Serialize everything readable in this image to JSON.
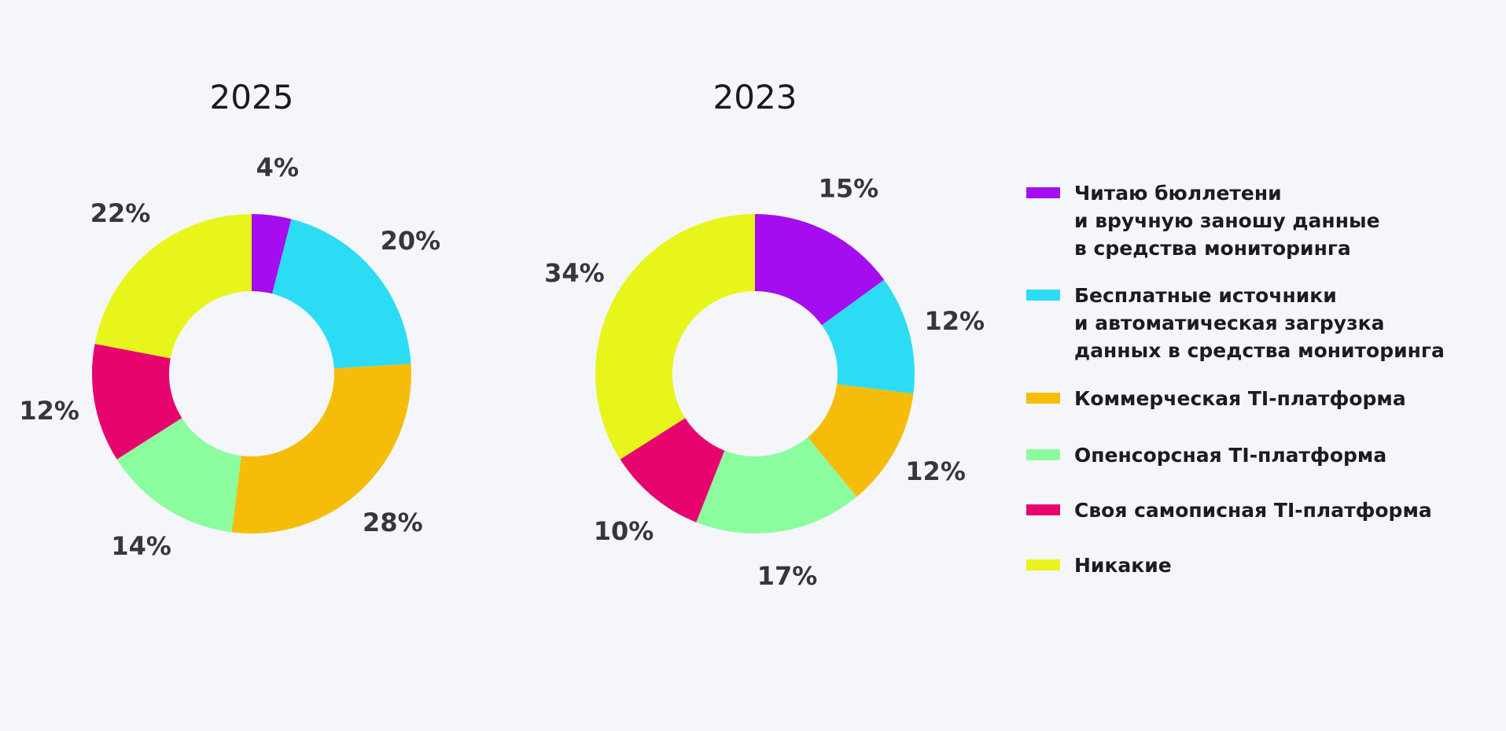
{
  "legend": {
    "items": [
      {
        "name": "Читаю бюллетени\nи вручную заношу данные\nв средства мониторинга",
        "color": "#a50cf0"
      },
      {
        "name": "Бесплатные источники\nи автоматическая загрузка\nданных в средства мониторинга",
        "color": "#2cdcf5"
      },
      {
        "name": "Коммерческая TI-платформа",
        "color": "#f5bd0a"
      },
      {
        "name": "Опенсорсная TI-платформа",
        "color": "#8cfd9f"
      },
      {
        "name": "Своя самописная TI-платформа",
        "color": "#e8046e"
      },
      {
        "name": "Никакие",
        "color": "#e8f51a"
      }
    ]
  },
  "chart_data": [
    {
      "type": "donut",
      "title": "2025",
      "values": [
        4,
        20,
        28,
        14,
        12,
        22
      ],
      "value_labels": [
        "4%",
        "20%",
        "28%",
        "14%",
        "12%",
        "22%"
      ]
    },
    {
      "type": "donut",
      "title": "2023",
      "values": [
        15,
        12,
        12,
        17,
        10,
        34
      ],
      "value_labels": [
        "15%",
        "12%",
        "12%",
        "17%",
        "10%",
        "34%"
      ]
    }
  ]
}
